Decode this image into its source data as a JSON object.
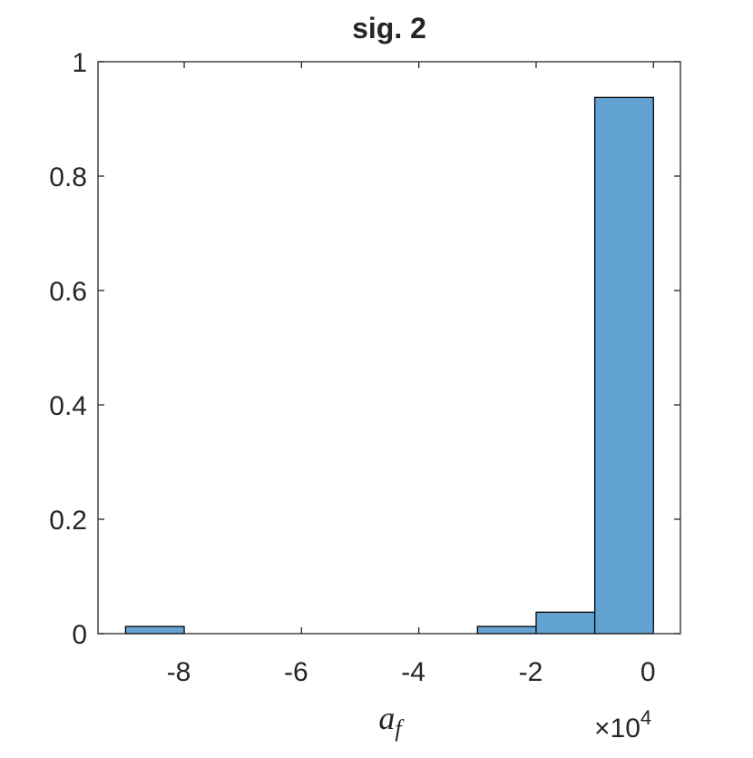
{
  "chart_data": {
    "type": "histogram",
    "title": "sig. 2",
    "bins": [
      -90000,
      -80000,
      -70000,
      -60000,
      -50000,
      -40000,
      -30000,
      -20000,
      -10000,
      0
    ],
    "values": [
      0.0125,
      0,
      0,
      0,
      0,
      0,
      0.0125,
      0.0375,
      0.9375
    ],
    "color": "#62a3d4",
    "xlim": [
      -94700,
      4600
    ],
    "ylim": [
      0,
      1
    ],
    "xticks": [
      {
        "value": -80000,
        "label": "-8"
      },
      {
        "value": -60000,
        "label": "-6"
      },
      {
        "value": -40000,
        "label": "-4"
      },
      {
        "value": -20000,
        "label": "-2"
      },
      {
        "value": 0,
        "label": "0"
      }
    ],
    "yticks": [
      0,
      0.2,
      0.4,
      0.6,
      0.8,
      1
    ],
    "xlabel": {
      "base": "a",
      "sub": "f"
    },
    "x_multiplier": {
      "base": "×10",
      "exponent": "4"
    }
  }
}
